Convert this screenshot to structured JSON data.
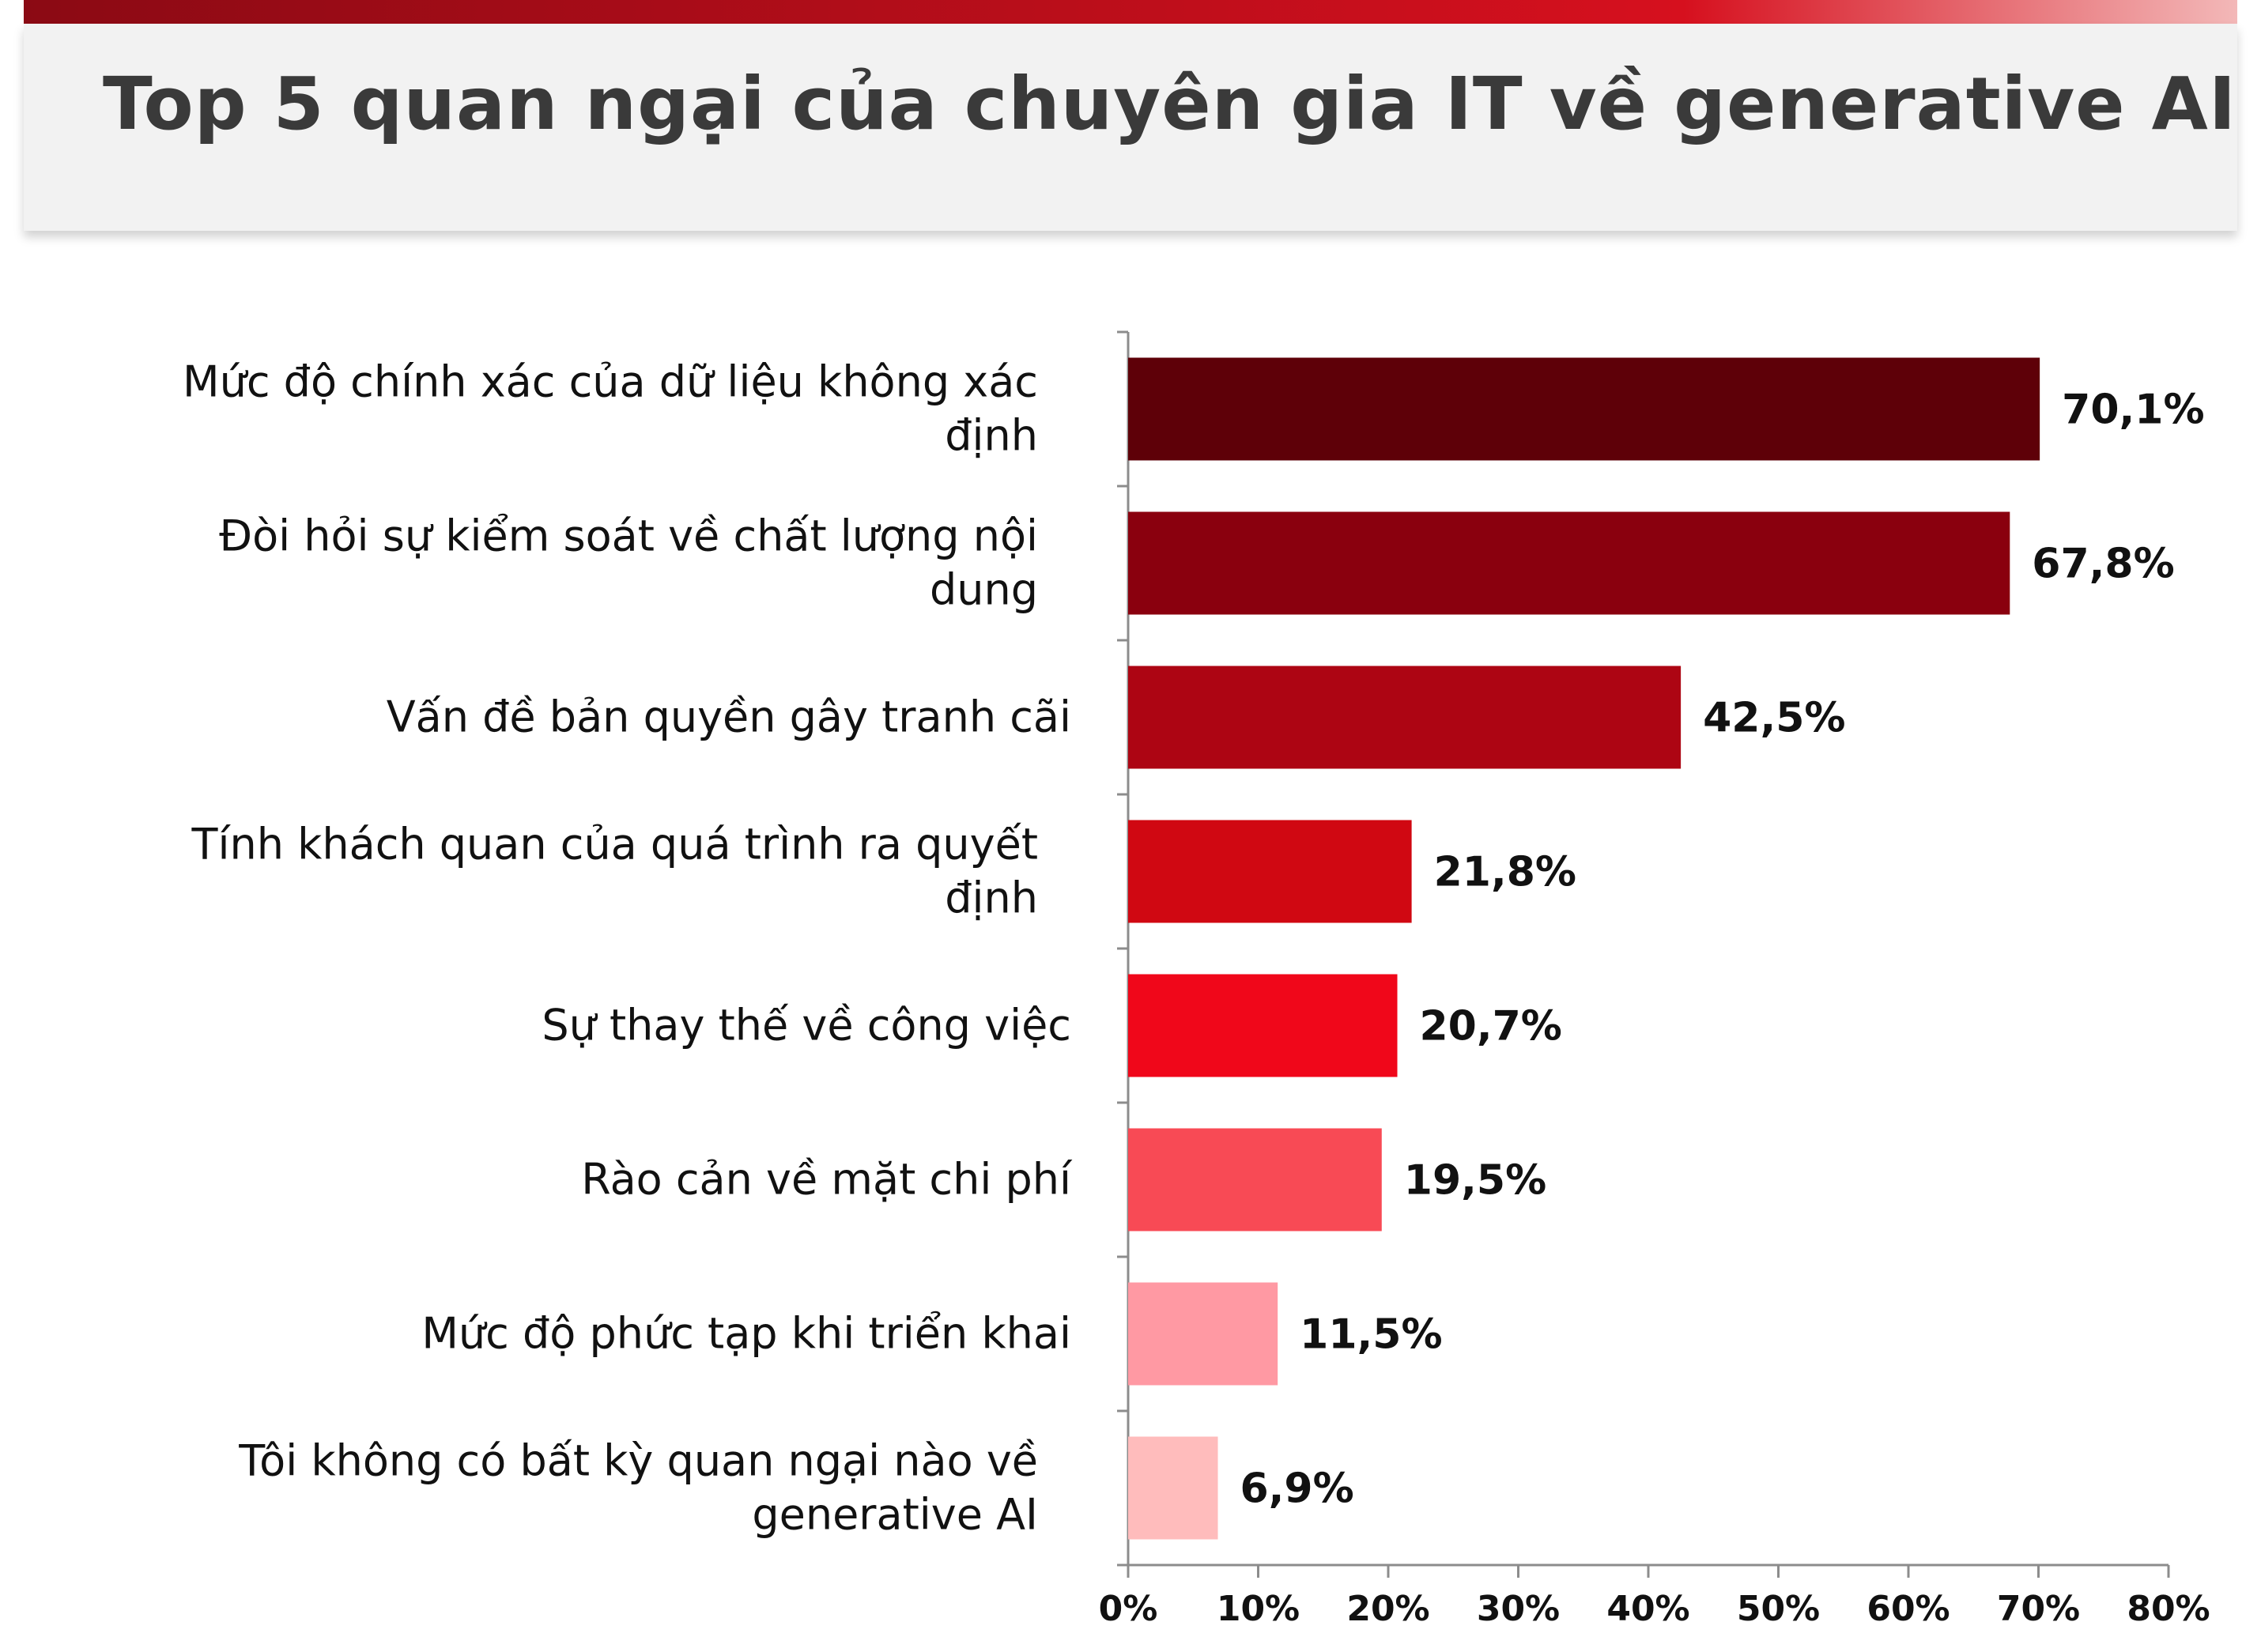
{
  "chart_data": {
    "type": "bar",
    "orientation": "horizontal",
    "title": "Top 5 quan ngại của chuyên gia IT về generative AI",
    "categories": [
      "Mức độ chính xác của dữ liệu không xác định",
      "Đòi hỏi sự kiểm soát về chất lượng nội dung",
      "Vấn đề bản quyền gây tranh cãi",
      "Tính khách quan của quá trình ra quyết định",
      "Sự thay thế về công việc",
      "Rào cản về mặt chi phí",
      "Mức độ phức tạp khi triển khai",
      "Tôi không có bất kỳ quan ngại nào về generative AI"
    ],
    "values": [
      70.1,
      67.8,
      42.5,
      21.8,
      20.7,
      19.5,
      11.5,
      6.9
    ],
    "value_labels": [
      "70,1%",
      "67,8%",
      "42,5%",
      "21,8%",
      "20,7%",
      "19,5%",
      "11,5%",
      "6,9%"
    ],
    "bar_colors": [
      "#5e0008",
      "#8a000e",
      "#ad0513",
      "#d00812",
      "#f0071a",
      "#f84a55",
      "#ff99a3",
      "#ffbcbc"
    ],
    "xlim": [
      0,
      80
    ],
    "x_ticks": [
      0,
      10,
      20,
      30,
      40,
      50,
      60,
      70,
      80
    ],
    "x_tick_labels": [
      "0%",
      "10%",
      "20%",
      "30%",
      "40%",
      "50%",
      "60%",
      "70%",
      "80%"
    ],
    "xlabel": "",
    "ylabel": "",
    "grid": false,
    "legend": "none"
  },
  "colors": {
    "stripe_start": "#8b0a14",
    "stripe_mid": "#d6101e",
    "stripe_end": "#f3b8b8",
    "title_text": "#3a3a3a",
    "axis": "#8c8c8c",
    "label_text": "#111111"
  }
}
